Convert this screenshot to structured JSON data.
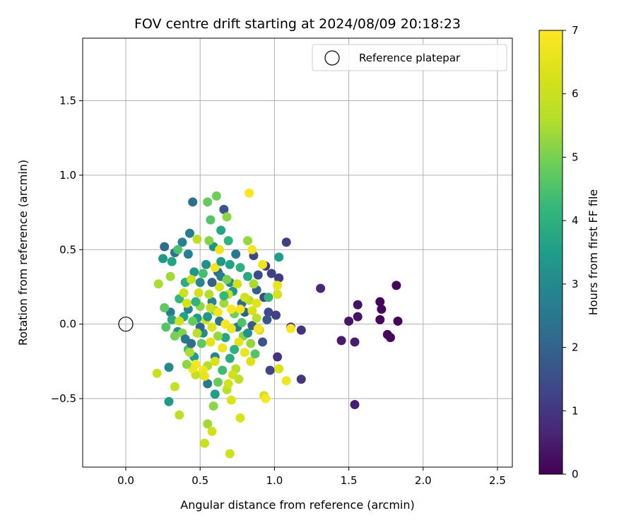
{
  "chart_data": {
    "type": "scatter",
    "title": "FOV centre drift starting at 2024/08/09 20:18:23",
    "xlabel": "Angular distance from reference (arcmin)",
    "ylabel": "Rotation from reference (arcmin)",
    "xlim": [
      -0.29,
      2.6
    ],
    "ylim": [
      -0.96,
      1.92
    ],
    "xticks": [
      0.0,
      0.5,
      1.0,
      1.5,
      2.0,
      2.5
    ],
    "xtick_labels": [
      "0.0",
      "0.5",
      "1.0",
      "1.5",
      "2.0",
      "2.5"
    ],
    "yticks": [
      -0.5,
      0.0,
      0.5,
      1.0,
      1.5
    ],
    "ytick_labels": [
      "−0.5",
      "0.0",
      "0.5",
      "1.0",
      "1.5"
    ],
    "grid": true,
    "legend": {
      "position": "top-right",
      "entries": [
        "Reference platepar"
      ]
    },
    "reference_point": {
      "name": "Reference platepar",
      "x": 0.0,
      "y": 0.0
    },
    "colorbar": {
      "label": "Hours from first FF file",
      "colormap": "viridis",
      "range": [
        0,
        7
      ],
      "ticks": [
        0,
        1,
        2,
        3,
        4,
        5,
        6,
        7
      ],
      "tick_labels": [
        "0",
        "1",
        "2",
        "3",
        "4",
        "5",
        "6",
        "7"
      ]
    },
    "points": [
      {
        "x": 1.82,
        "y": 0.26,
        "c": 0.1
      },
      {
        "x": 1.71,
        "y": 0.15,
        "c": 0.05
      },
      {
        "x": 1.72,
        "y": 0.1,
        "c": 0.1
      },
      {
        "x": 1.71,
        "y": 0.03,
        "c": 0.15
      },
      {
        "x": 1.83,
        "y": 0.02,
        "c": 0.1
      },
      {
        "x": 1.76,
        "y": -0.07,
        "c": 0.2
      },
      {
        "x": 1.78,
        "y": -0.09,
        "c": 0.15
      },
      {
        "x": 1.56,
        "y": 0.13,
        "c": 0.3
      },
      {
        "x": 1.56,
        "y": 0.05,
        "c": 0.35
      },
      {
        "x": 1.5,
        "y": 0.02,
        "c": 0.4
      },
      {
        "x": 1.45,
        "y": -0.11,
        "c": 0.45
      },
      {
        "x": 1.54,
        "y": -0.12,
        "c": 0.5
      },
      {
        "x": 1.54,
        "y": -0.54,
        "c": 0.5
      },
      {
        "x": 1.31,
        "y": 0.24,
        "c": 0.7
      },
      {
        "x": 1.08,
        "y": 0.55,
        "c": 1.2
      },
      {
        "x": 1.18,
        "y": -0.04,
        "c": 0.9
      },
      {
        "x": 1.18,
        "y": -0.37,
        "c": 1.0
      },
      {
        "x": 1.11,
        "y": -0.02,
        "c": 1.1
      },
      {
        "x": 1.02,
        "y": -0.22,
        "c": 0.9
      },
      {
        "x": 0.97,
        "y": -0.31,
        "c": 1.3
      },
      {
        "x": 1.03,
        "y": 0.31,
        "c": 1.1
      },
      {
        "x": 0.98,
        "y": 0.34,
        "c": 1.2
      },
      {
        "x": 0.96,
        "y": 0.08,
        "c": 1.4
      },
      {
        "x": 0.93,
        "y": 0.18,
        "c": 1.5
      },
      {
        "x": 0.92,
        "y": -0.12,
        "c": 1.6
      },
      {
        "x": 0.86,
        "y": 0.46,
        "c": 1.3
      },
      {
        "x": 0.89,
        "y": 0.33,
        "c": 1.5
      },
      {
        "x": 0.94,
        "y": 0.39,
        "c": 1.0
      },
      {
        "x": 0.95,
        "y": 0.03,
        "c": 1.7
      },
      {
        "x": 1.01,
        "y": 0.06,
        "c": 1.2
      },
      {
        "x": 0.85,
        "y": -0.01,
        "c": 1.8
      },
      {
        "x": 0.8,
        "y": 0.08,
        "c": 1.9
      },
      {
        "x": 0.88,
        "y": 0.23,
        "c": 1.9
      },
      {
        "x": 0.78,
        "y": 0.14,
        "c": 2.1
      },
      {
        "x": 0.66,
        "y": 0.77,
        "c": 1.6
      },
      {
        "x": 0.45,
        "y": 0.82,
        "c": 2.3
      },
      {
        "x": 0.33,
        "y": 0.48,
        "c": 2.4
      },
      {
        "x": 0.26,
        "y": 0.52,
        "c": 2.2
      },
      {
        "x": 0.3,
        "y": 0.08,
        "c": 2.6
      },
      {
        "x": 0.29,
        "y": -0.29,
        "c": 3.0
      },
      {
        "x": 0.29,
        "y": -0.52,
        "c": 3.4
      },
      {
        "x": 0.55,
        "y": -0.4,
        "c": 2.5
      },
      {
        "x": 0.6,
        "y": -0.47,
        "c": 3.5
      },
      {
        "x": 0.64,
        "y": 0.63,
        "c": 3.7
      },
      {
        "x": 0.59,
        "y": 0.52,
        "c": 3.2
      },
      {
        "x": 0.69,
        "y": 0.56,
        "c": 4.1
      },
      {
        "x": 0.42,
        "y": 0.47,
        "c": 2.7
      },
      {
        "x": 0.38,
        "y": 0.55,
        "c": 2.8
      },
      {
        "x": 0.43,
        "y": 0.61,
        "c": 2.6
      },
      {
        "x": 0.46,
        "y": 0.35,
        "c": 3.3
      },
      {
        "x": 0.5,
        "y": 0.28,
        "c": 2.9
      },
      {
        "x": 0.54,
        "y": 0.4,
        "c": 3.1
      },
      {
        "x": 0.62,
        "y": 0.35,
        "c": 2.2
      },
      {
        "x": 0.7,
        "y": 0.4,
        "c": 3.6
      },
      {
        "x": 0.74,
        "y": 0.47,
        "c": 2.5
      },
      {
        "x": 0.77,
        "y": 0.38,
        "c": 4.0
      },
      {
        "x": 0.82,
        "y": 0.32,
        "c": 3.8
      },
      {
        "x": 0.4,
        "y": 0.28,
        "c": 3.9
      },
      {
        "x": 0.36,
        "y": 0.17,
        "c": 4.2
      },
      {
        "x": 0.42,
        "y": 0.1,
        "c": 2.9
      },
      {
        "x": 0.48,
        "y": 0.04,
        "c": 3.4
      },
      {
        "x": 0.52,
        "y": -0.06,
        "c": 3.1
      },
      {
        "x": 0.58,
        "y": 0.15,
        "c": 2.8
      },
      {
        "x": 0.63,
        "y": 0.02,
        "c": 2.4
      },
      {
        "x": 0.67,
        "y": -0.09,
        "c": 3.7
      },
      {
        "x": 0.72,
        "y": 0.22,
        "c": 3.3
      },
      {
        "x": 0.75,
        "y": -0.02,
        "c": 2.6
      },
      {
        "x": 0.7,
        "y": 0.28,
        "c": 3.0
      },
      {
        "x": 0.6,
        "y": -0.22,
        "c": 2.9
      },
      {
        "x": 0.65,
        "y": -0.31,
        "c": 4.3
      },
      {
        "x": 0.7,
        "y": -0.23,
        "c": 3.9
      },
      {
        "x": 0.46,
        "y": -0.22,
        "c": 3.5
      },
      {
        "x": 0.42,
        "y": -0.17,
        "c": 4.4
      },
      {
        "x": 0.35,
        "y": -0.05,
        "c": 3.0
      },
      {
        "x": 0.31,
        "y": 0.03,
        "c": 3.8
      },
      {
        "x": 0.57,
        "y": 0.7,
        "c": 4.6
      },
      {
        "x": 0.55,
        "y": 0.82,
        "c": 4.8
      },
      {
        "x": 0.61,
        "y": 0.86,
        "c": 4.9
      },
      {
        "x": 0.68,
        "y": 0.72,
        "c": 5.2
      },
      {
        "x": 0.82,
        "y": 0.56,
        "c": 5.3
      },
      {
        "x": 0.35,
        "y": 0.5,
        "c": 4.5
      },
      {
        "x": 0.3,
        "y": 0.32,
        "c": 5.4
      },
      {
        "x": 0.22,
        "y": 0.27,
        "c": 5.5
      },
      {
        "x": 0.26,
        "y": 0.11,
        "c": 4.7
      },
      {
        "x": 0.27,
        "y": -0.02,
        "c": 4.6
      },
      {
        "x": 0.33,
        "y": -0.08,
        "c": 5.0
      },
      {
        "x": 0.38,
        "y": -0.06,
        "c": 5.1
      },
      {
        "x": 0.45,
        "y": 0.02,
        "c": 4.8
      },
      {
        "x": 0.5,
        "y": 0.12,
        "c": 5.2
      },
      {
        "x": 0.56,
        "y": 0.2,
        "c": 5.6
      },
      {
        "x": 0.6,
        "y": 0.09,
        "c": 5.0
      },
      {
        "x": 0.66,
        "y": 0.14,
        "c": 5.4
      },
      {
        "x": 0.73,
        "y": 0.07,
        "c": 4.9
      },
      {
        "x": 0.79,
        "y": -0.08,
        "c": 5.1
      },
      {
        "x": 0.84,
        "y": -0.13,
        "c": 5.3
      },
      {
        "x": 0.88,
        "y": 0.04,
        "c": 5.7
      },
      {
        "x": 0.86,
        "y": 0.27,
        "c": 5.5
      },
      {
        "x": 0.83,
        "y": 0.16,
        "c": 5.8
      },
      {
        "x": 0.51,
        "y": -0.13,
        "c": 4.7
      },
      {
        "x": 0.55,
        "y": -0.28,
        "c": 5.6
      },
      {
        "x": 0.47,
        "y": -0.34,
        "c": 5.9
      },
      {
        "x": 0.43,
        "y": -0.19,
        "c": 5.5
      },
      {
        "x": 0.62,
        "y": -0.39,
        "c": 4.8
      },
      {
        "x": 0.68,
        "y": -0.44,
        "c": 5.7
      },
      {
        "x": 0.74,
        "y": -0.3,
        "c": 5.6
      },
      {
        "x": 0.59,
        "y": -0.55,
        "c": 5.2
      },
      {
        "x": 0.55,
        "y": -0.67,
        "c": 5.4
      },
      {
        "x": 0.36,
        "y": -0.61,
        "c": 5.8
      },
      {
        "x": 0.53,
        "y": -0.8,
        "c": 6.0
      },
      {
        "x": 0.7,
        "y": -0.87,
        "c": 6.1
      },
      {
        "x": 0.58,
        "y": -0.72,
        "c": 6.2
      },
      {
        "x": 0.77,
        "y": -0.63,
        "c": 6.3
      },
      {
        "x": 0.71,
        "y": -0.51,
        "c": 6.4
      },
      {
        "x": 0.69,
        "y": -0.4,
        "c": 6.2
      },
      {
        "x": 0.33,
        "y": -0.42,
        "c": 5.9
      },
      {
        "x": 0.21,
        "y": -0.33,
        "c": 6.0
      },
      {
        "x": 0.39,
        "y": 0.21,
        "c": 6.1
      },
      {
        "x": 0.41,
        "y": 0.14,
        "c": 6.3
      },
      {
        "x": 0.44,
        "y": 0.3,
        "c": 6.0
      },
      {
        "x": 0.49,
        "y": 0.21,
        "c": 6.2
      },
      {
        "x": 0.54,
        "y": 0.03,
        "c": 6.1
      },
      {
        "x": 0.58,
        "y": -0.02,
        "c": 6.4
      },
      {
        "x": 0.63,
        "y": 0.25,
        "c": 6.3
      },
      {
        "x": 0.69,
        "y": 0.2,
        "c": 6.0
      },
      {
        "x": 0.75,
        "y": 0.27,
        "c": 6.2
      },
      {
        "x": 0.8,
        "y": 0.18,
        "c": 6.1
      },
      {
        "x": 0.85,
        "y": 0.09,
        "c": 6.3
      },
      {
        "x": 0.9,
        "y": -0.04,
        "c": 6.0
      },
      {
        "x": 0.93,
        "y": -0.48,
        "c": 6.2
      },
      {
        "x": 1.03,
        "y": -0.3,
        "c": 6.4
      },
      {
        "x": 1.02,
        "y": 0.2,
        "c": 6.3
      },
      {
        "x": 0.88,
        "y": 0.14,
        "c": 6.5
      },
      {
        "x": 0.84,
        "y": -0.25,
        "c": 6.4
      },
      {
        "x": 0.8,
        "y": -0.19,
        "c": 6.6
      },
      {
        "x": 0.76,
        "y": -0.12,
        "c": 6.5
      },
      {
        "x": 0.65,
        "y": -0.16,
        "c": 6.7
      },
      {
        "x": 0.6,
        "y": -0.25,
        "c": 6.3
      },
      {
        "x": 0.52,
        "y": -0.31,
        "c": 6.8
      },
      {
        "x": 0.47,
        "y": -0.27,
        "c": 6.9
      },
      {
        "x": 0.45,
        "y": -0.3,
        "c": 6.7
      },
      {
        "x": 0.53,
        "y": -0.35,
        "c": 6.6
      },
      {
        "x": 0.62,
        "y": 0.08,
        "c": 6.8
      },
      {
        "x": 0.67,
        "y": 0.0,
        "c": 6.9
      },
      {
        "x": 0.71,
        "y": -0.03,
        "c": 6.7
      },
      {
        "x": 0.77,
        "y": 0.1,
        "c": 6.8
      },
      {
        "x": 0.83,
        "y": 0.88,
        "c": 6.9
      },
      {
        "x": 0.85,
        "y": 0.5,
        "c": 6.8
      },
      {
        "x": 0.89,
        "y": -0.03,
        "c": 6.9
      },
      {
        "x": 0.92,
        "y": 0.4,
        "c": 6.7
      },
      {
        "x": 0.94,
        "y": -0.5,
        "c": 6.9
      },
      {
        "x": 1.08,
        "y": -0.38,
        "c": 6.8
      },
      {
        "x": 1.11,
        "y": -0.03,
        "c": 6.9
      },
      {
        "x": 1.02,
        "y": 0.26,
        "c": 6.6
      },
      {
        "x": 0.6,
        "y": 0.38,
        "c": 6.8
      },
      {
        "x": 0.63,
        "y": 0.5,
        "c": 6.7
      },
      {
        "x": 0.71,
        "y": 0.1,
        "c": 6.9
      },
      {
        "x": 0.55,
        "y": 0.05,
        "c": 3.3
      },
      {
        "x": 0.58,
        "y": 0.28,
        "c": 2.0
      },
      {
        "x": 0.64,
        "y": 0.32,
        "c": 2.7
      },
      {
        "x": 0.5,
        "y": -0.02,
        "c": 2.1
      },
      {
        "x": 0.4,
        "y": -0.1,
        "c": 2.5
      },
      {
        "x": 0.47,
        "y": 0.15,
        "c": 4.1
      },
      {
        "x": 0.52,
        "y": 0.34,
        "c": 4.4
      },
      {
        "x": 0.39,
        "y": 0.05,
        "c": 3.6
      },
      {
        "x": 0.66,
        "y": 0.19,
        "c": 4.2
      },
      {
        "x": 0.73,
        "y": -0.17,
        "c": 4.0
      },
      {
        "x": 0.57,
        "y": 0.11,
        "c": 5.9
      },
      {
        "x": 0.62,
        "y": -0.08,
        "c": 5.3
      },
      {
        "x": 0.48,
        "y": -0.06,
        "c": 5.7
      },
      {
        "x": 0.36,
        "y": 0.02,
        "c": 6.1
      },
      {
        "x": 0.68,
        "y": 0.3,
        "c": 5.0
      },
      {
        "x": 0.78,
        "y": 0.01,
        "c": 4.5
      },
      {
        "x": 0.82,
        "y": -0.06,
        "c": 3.2
      },
      {
        "x": 0.87,
        "y": -0.2,
        "c": 4.6
      },
      {
        "x": 0.57,
        "y": -0.12,
        "c": 6.5
      },
      {
        "x": 0.72,
        "y": -0.34,
        "c": 6.1
      },
      {
        "x": 0.76,
        "y": -0.37,
        "c": 5.8
      },
      {
        "x": 0.96,
        "y": 0.18,
        "c": 4.1
      },
      {
        "x": 1.03,
        "y": 0.45,
        "c": 3.5
      },
      {
        "x": 0.64,
        "y": 0.42,
        "c": 3.4
      },
      {
        "x": 0.31,
        "y": 0.42,
        "c": 3.6
      },
      {
        "x": 0.25,
        "y": 0.44,
        "c": 3.3
      },
      {
        "x": 0.44,
        "y": -0.13,
        "c": 2.2
      },
      {
        "x": 0.41,
        "y": -0.27,
        "c": 5.2
      },
      {
        "x": 0.56,
        "y": 0.56,
        "c": 5.1
      },
      {
        "x": 0.48,
        "y": 0.57,
        "c": 5.8
      }
    ]
  }
}
